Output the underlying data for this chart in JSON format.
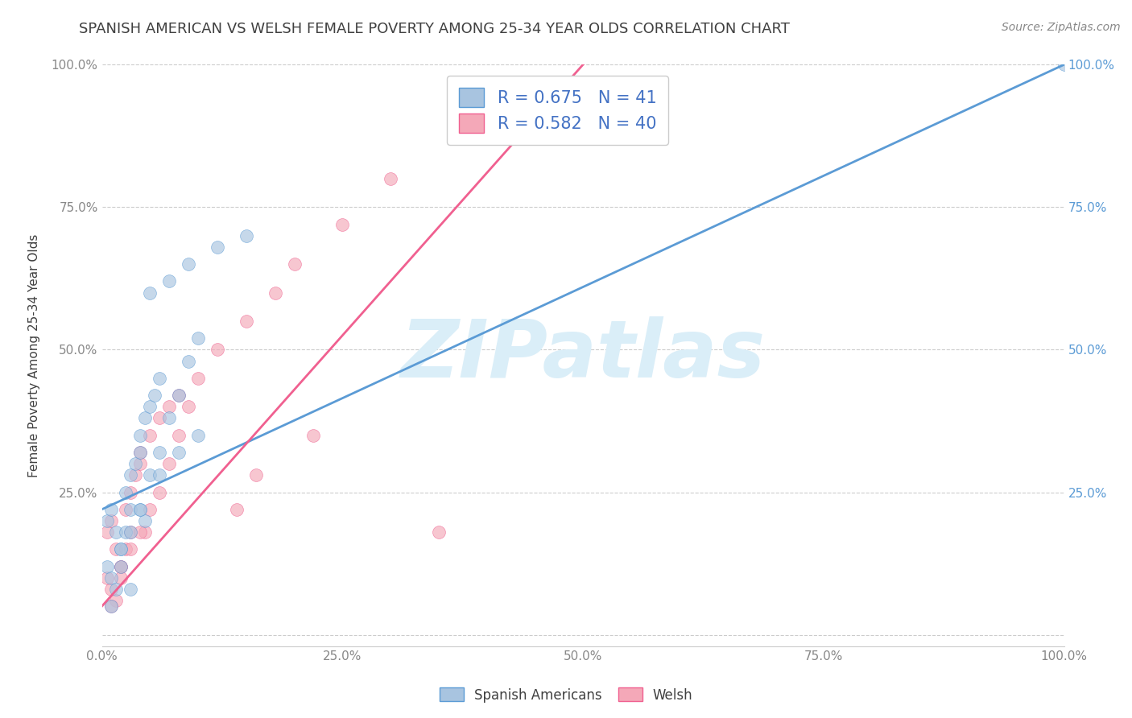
{
  "title": "SPANISH AMERICAN VS WELSH FEMALE POVERTY AMONG 25-34 YEAR OLDS CORRELATION CHART",
  "source": "Source: ZipAtlas.com",
  "ylabel": "Female Poverty Among 25-34 Year Olds",
  "xlim": [
    0,
    1.0
  ],
  "ylim": [
    -0.02,
    1.0
  ],
  "xticks": [
    0.0,
    0.25,
    0.5,
    0.75,
    1.0
  ],
  "yticks": [
    0.0,
    0.25,
    0.5,
    0.75,
    1.0
  ],
  "xtick_labels": [
    "0.0%",
    "25.0%",
    "50.0%",
    "75.0%",
    "100.0%"
  ],
  "watermark": "ZIPatlas",
  "legend_entries": [
    {
      "label": "Spanish Americans",
      "color": "#a8c4e0",
      "R": 0.675,
      "N": 41
    },
    {
      "label": "Welsh",
      "color": "#f4a0b0",
      "R": 0.582,
      "N": 40
    }
  ],
  "blue_color": "#5b9bd5",
  "pink_color": "#f06090",
  "blue_scatter_color": "#a8c4e0",
  "pink_scatter_color": "#f4a8b8",
  "scatter_alpha": 0.65,
  "scatter_size": 130,
  "spanish_x": [
    0.005,
    0.01,
    0.015,
    0.02,
    0.025,
    0.03,
    0.035,
    0.04,
    0.045,
    0.005,
    0.01,
    0.015,
    0.02,
    0.025,
    0.03,
    0.04,
    0.045,
    0.05,
    0.055,
    0.06,
    0.01,
    0.02,
    0.03,
    0.04,
    0.05,
    0.06,
    0.07,
    0.08,
    0.09,
    0.1,
    0.05,
    0.07,
    0.09,
    0.12,
    0.15,
    0.04,
    0.06,
    0.08,
    0.1,
    0.03,
    1.0
  ],
  "spanish_y": [
    0.2,
    0.22,
    0.18,
    0.15,
    0.25,
    0.28,
    0.3,
    0.32,
    0.2,
    0.12,
    0.1,
    0.08,
    0.15,
    0.18,
    0.22,
    0.35,
    0.38,
    0.4,
    0.42,
    0.45,
    0.05,
    0.12,
    0.18,
    0.22,
    0.28,
    0.32,
    0.38,
    0.42,
    0.48,
    0.52,
    0.6,
    0.62,
    0.65,
    0.68,
    0.7,
    0.22,
    0.28,
    0.32,
    0.35,
    0.08,
    1.0
  ],
  "welsh_x": [
    0.005,
    0.01,
    0.015,
    0.02,
    0.025,
    0.03,
    0.035,
    0.04,
    0.045,
    0.005,
    0.01,
    0.015,
    0.02,
    0.025,
    0.03,
    0.04,
    0.05,
    0.06,
    0.07,
    0.08,
    0.01,
    0.02,
    0.03,
    0.04,
    0.05,
    0.06,
    0.07,
    0.08,
    0.09,
    0.1,
    0.12,
    0.15,
    0.18,
    0.2,
    0.25,
    0.3,
    0.14,
    0.16,
    0.22,
    0.35
  ],
  "welsh_y": [
    0.18,
    0.2,
    0.15,
    0.12,
    0.22,
    0.25,
    0.28,
    0.3,
    0.18,
    0.1,
    0.08,
    0.06,
    0.12,
    0.15,
    0.18,
    0.32,
    0.35,
    0.38,
    0.4,
    0.42,
    0.05,
    0.1,
    0.15,
    0.18,
    0.22,
    0.25,
    0.3,
    0.35,
    0.4,
    0.45,
    0.5,
    0.55,
    0.6,
    0.65,
    0.72,
    0.8,
    0.22,
    0.28,
    0.35,
    0.18
  ],
  "blue_line": {
    "x0": 0.0,
    "x1": 1.0,
    "y0": 0.22,
    "y1": 1.0
  },
  "pink_line": {
    "x0": 0.0,
    "x1": 0.5,
    "y0": 0.05,
    "y1": 1.0
  },
  "grid_color": "#cccccc",
  "title_color": "#404040",
  "label_color": "#404040",
  "tick_color": "#888888",
  "legend_text_color": "#4472c4",
  "watermark_color": "#daeef8",
  "background_color": "#ffffff",
  "right_ytick_labels": [
    "25.0%",
    "50.0%",
    "75.0%",
    "100.0%"
  ],
  "right_ytick_positions": [
    0.25,
    0.5,
    0.75,
    1.0
  ]
}
